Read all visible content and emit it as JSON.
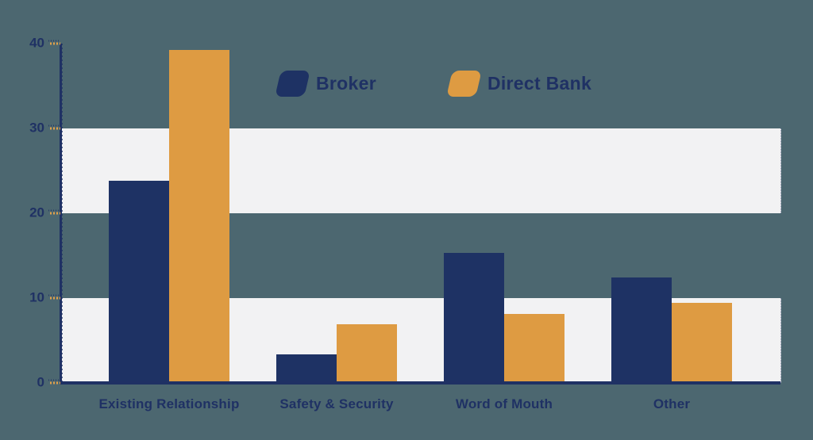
{
  "canvas": {
    "background_color": "#4c6770"
  },
  "chart_data": {
    "type": "bar",
    "title": "",
    "xlabel": "",
    "ylabel": "",
    "categories": [
      "Existing Relationship",
      "Safety & Security",
      "Word of Mouth",
      "Other"
    ],
    "series": [
      {
        "name": "Broker",
        "color": "#1e3264",
        "values": [
          23.8,
          3.4,
          15.3,
          12.4
        ]
      },
      {
        "name": "Direct Bank",
        "color": "#de9b42",
        "values": [
          39.3,
          6.9,
          8.1,
          9.4
        ]
      }
    ],
    "ylim": [
      0,
      40
    ],
    "yticks": [
      40,
      30,
      20,
      10,
      0
    ],
    "grid": "horizontal-bands",
    "grid_bands": [
      {
        "from": 20,
        "to": 30
      },
      {
        "from": 0,
        "to": 10
      }
    ],
    "band_color": "#f2f2f3",
    "axis_color": "#1f3164",
    "tick_color": "#e0a14b",
    "text_color": "#1f3164",
    "legend_position": "top-center"
  }
}
